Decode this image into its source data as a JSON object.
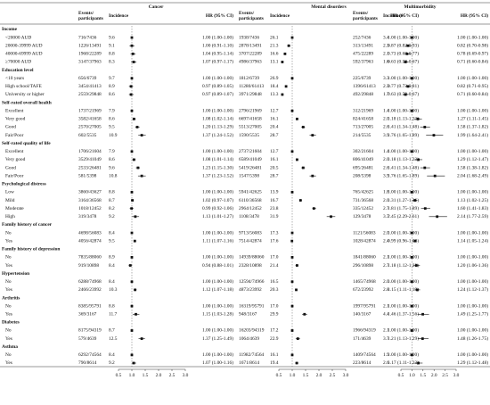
{
  "chart_data": {
    "type": "forest",
    "xlim": [
      0.5,
      3.0
    ],
    "xticks": [
      {
        "value": 0.5,
        "label": "0.5"
      },
      {
        "value": 1,
        "label": "1.0"
      },
      {
        "value": 1.5,
        "label": "1.5"
      },
      {
        "value": 2,
        "label": "2.0"
      },
      {
        "value": 2.5,
        "label": "2.5"
      },
      {
        "value": 3,
        "label": "3.0"
      }
    ],
    "reference": 1,
    "columns": [
      "Events/",
      "participants",
      "Incidence",
      "HR (95% CI)"
    ],
    "groups": [
      {
        "label": "Income",
        "items": [
          "<20000 AUD",
          "20000-39999 AUD",
          "40000-69999 AUD",
          "≥70000 AUD"
        ]
      },
      {
        "label": "Education level",
        "items": [
          "<10 years",
          "High school/TAFE",
          "University or higher"
        ]
      },
      {
        "label": "Self-rated overall health",
        "items": [
          "Excellent",
          "Very good",
          "Good",
          "Fair/Poor"
        ]
      },
      {
        "label": "Self-rated quality of life",
        "items": [
          "Excellent",
          "Very good",
          "Good",
          "Fair/Poor"
        ]
      },
      {
        "label": "Psychological distress",
        "items": [
          "Low",
          "Mild",
          "Moderate",
          "High"
        ]
      },
      {
        "label": "Family history of cancer",
        "items": [
          "No",
          "Yes"
        ]
      },
      {
        "label": "Family history of depression",
        "items": [
          "No",
          "Yes"
        ]
      },
      {
        "label": "Hypertension",
        "items": [
          "No",
          "Yes"
        ]
      },
      {
        "label": "Arthritis",
        "items": [
          "No",
          "Yes"
        ]
      },
      {
        "label": "Diabetes",
        "items": [
          "No",
          "Yes"
        ]
      },
      {
        "label": "Asthma",
        "items": [
          "No",
          "Yes"
        ]
      }
    ],
    "panels": [
      {
        "title": "Cancer",
        "events": [
          "716/7436",
          "1226/13491",
          "1968/22289",
          "3147/37963",
          "656/6739",
          "3454/41413",
          "2559/29848",
          "1737/21969",
          "3582/41658",
          "2570/27005",
          "602/5535",
          "1706/21604",
          "3529/41049",
          "2533/26481",
          "581/5398",
          "3860/43627",
          "3164/36568",
          "1018/12452",
          "319/3478",
          "4698/56083",
          "4056/42874",
          "7835/88060",
          "919/10898",
          "6288/74968",
          "2466/23992",
          "8385/95791",
          "369/3167",
          "8175/94319",
          "579/4639",
          "6292/74564",
          "790/8614"
        ],
        "incidence": [
          "9.6",
          "9.1",
          "8.8",
          "8.3",
          "9.7",
          "8.9",
          "8.6",
          "7.9",
          "8.6",
          "9.5",
          "10.9",
          "7.9",
          "8.6",
          "9.6",
          "10.8",
          "8.8",
          "8.7",
          "8.2",
          "9.2",
          "8.4",
          "9.5",
          "8.9",
          "8.4",
          "8.4",
          "10.3",
          "8.8",
          "11.7",
          "8.7",
          "12.5",
          "8.4",
          "9.2"
        ],
        "values": [
          1,
          1,
          1.04,
          1.07,
          1,
          0.97,
          0.97,
          1,
          1.08,
          1.2,
          1.37,
          1,
          1.08,
          1.23,
          1.37,
          1,
          1.02,
          0.99,
          1.13,
          1,
          1.11,
          1,
          0.94,
          1,
          1.12,
          1,
          1.15,
          1,
          1.37,
          1,
          1.07
        ],
        "lower": [
          1,
          0.91,
          0.95,
          0.97,
          1,
          0.89,
          0.89,
          1,
          1.02,
          1.13,
          1.24,
          1,
          1.01,
          1.15,
          1.23,
          1,
          0.97,
          0.92,
          1.01,
          1,
          1.07,
          1,
          0.88,
          1,
          1.07,
          1,
          1.03,
          1,
          1.25,
          1,
          1
        ],
        "upper": [
          1,
          1.1,
          1.14,
          1.17,
          1,
          1.05,
          1.07,
          1,
          1.14,
          1.29,
          1.52,
          1,
          1.14,
          1.3,
          1.52,
          1,
          1.07,
          1.06,
          1.27,
          1,
          1.16,
          1,
          1.01,
          1,
          1.18,
          1,
          1.28,
          1,
          1.49,
          1,
          1.16
        ],
        "value_labels": [
          "1.00 (1.00-1.00)",
          "1.00 (0.91-1.10)",
          "1.04 (0.95-1.14)",
          "1.07 (0.97-1.17)",
          "1.00 (1.00-1.00)",
          "0.97 (0.89-1.05)",
          "0.97 (0.89-1.07)",
          "1.00 (1.00-1.00)",
          "1.08 (1.02-1.14)",
          "1.20 (1.13-1.29)",
          "1.37 (1.24-1.52)",
          "1.00 (1.00-1.00)",
          "1.08 (1.01-1.14)",
          "1.23 (1.15-1.30)",
          "1.37 (1.23-1.52)",
          "1.00 (1.00-1.00)",
          "1.02 (0.97-1.07)",
          "0.99 (0.92-1.06)",
          "1.13 (1.01-1.27)",
          "1.00 (1.00-1.00)",
          "1.11 (1.07-1.16)",
          "1.00 (1.00-1.00)",
          "0.94 (0.88-1.01)",
          "1.00 (1.00-1.00)",
          "1.12 (1.07-1.18)",
          "1.00 (1.00-1.00)",
          "1.15 (1.03-1.28)",
          "1.00 (1.00-1.00)",
          "1.37 (1.25-1.49)",
          "1.00 (1.00-1.00)",
          "1.07 (1.00-1.16)"
        ]
      },
      {
        "title": "Mental disorders",
        "events": [
          "1938/7436",
          "2878/13491",
          "3707/22289",
          "4986/37963",
          "1812/6739",
          "11280/61413",
          "3971/29848",
          "2796/21969",
          "6697/41658",
          "5513/27005",
          "1590/5535",
          "2737/21604",
          "6589/41049",
          "5419/26481",
          "1547/5398",
          "5941/42625",
          "6110/36568",
          "2964/12452",
          "1108/3478",
          "9713/56083",
          "7514/42874",
          "14939/88060",
          "2328/10898",
          "12594/74966",
          "4873/23992",
          "16319/95791",
          "948/3167",
          "16203/94319",
          "1064/4639",
          "11982/74564",
          "1671/8614"
        ],
        "incidence": [
          "26.1",
          "21.3",
          "16.6",
          "13.1",
          "26.9",
          "18.4",
          "13.3",
          "12.7",
          "16.1",
          "20.4",
          "28.7",
          "12.7",
          "16.1",
          "20.5",
          "28.7",
          "13.9",
          "16.7",
          "23.8",
          "31.9",
          "17.3",
          "17.6",
          "17.0",
          "21.4",
          "16.5",
          "20.3",
          "17.0",
          "29.9",
          "17.2",
          "22.9",
          "16.1",
          "19.4"
        ],
        "values": [
          1,
          0.87,
          0.73,
          0.63,
          1,
          0.77,
          0.63,
          1,
          1.18,
          1.41,
          1.76,
          1,
          1.18,
          1.41,
          1.76,
          1,
          1.31,
          1.81,
          2.45,
          1,
          0.99,
          1,
          1.18,
          1,
          1.15,
          1,
          1.46,
          1,
          1.21,
          1,
          1.17
        ],
        "lower": [
          1,
          0.82,
          0.68,
          0.59,
          1,
          0.73,
          0.59,
          1,
          1.13,
          1.34,
          1.65,
          1,
          1.13,
          1.34,
          1.65,
          1,
          1.27,
          1.75,
          2.29,
          1,
          0.96,
          1,
          1.12,
          1,
          1.11,
          1,
          1.37,
          1,
          1.13,
          1,
          1.11
        ],
        "upper": [
          1,
          0.93,
          0.77,
          0.67,
          1,
          0.81,
          0.67,
          1,
          1.23,
          1.48,
          1.89,
          1,
          1.23,
          1.48,
          1.89,
          1,
          1.36,
          1.89,
          2.61,
          1,
          1.02,
          1,
          1.23,
          1,
          1.19,
          1,
          1.56,
          1,
          1.29,
          1,
          1.23
        ],
        "value_labels": [
          "1.00 (1.00-1.00)",
          "0.87 (0.82-0.93)",
          "0.73 (0.68-0.77)",
          "0.63 (0.59-0.67)",
          "1.00 (1.00-1.00)",
          "0.77 (0.73-0.81)",
          "0.63 (0.59-0.67)",
          "1.00 (1.00-1.00)",
          "1.18 (1.13-1.23)",
          "1.41 (1.34-1.48)",
          "1.76 (1.65-1.89)",
          "1.00 (1.00-1.00)",
          "1.18 (1.13-1.23)",
          "1.41 (1.34-1.48)",
          "1.76 (1.65-1.89)",
          "1.00 (1.00-1.00)",
          "1.31 (1.27-1.36)",
          "1.81 (1.75-1.89)",
          "2.45 (2.29-2.61)",
          "1.00 (1.00-1.00)",
          "0.99 (0.96-1.02)",
          "1.00 (1.00-1.00)",
          "1.18 (1.12-1.23)",
          "1.00 (1.00-1.00)",
          "1.15 (1.11-1.19)",
          "1.00 (1.00-1.00)",
          "1.46 (1.37-1.56)",
          "1.00 (1.00-1.00)",
          "1.21 (1.13-1.29)",
          "1.00 (1.00-1.00)",
          "1.17 (1.11-1.23)"
        ]
      },
      {
        "title": "Multimorbidity",
        "events": [
          "252/7436",
          "313/13491",
          "475/22289",
          "592/37963",
          "225/6739",
          "1396/61413",
          "492/29848",
          "312/21969",
          "824/41658",
          "713/27005",
          "214/5535",
          "302/21604",
          "806/41049",
          "695/26481",
          "208/5398",
          "765/42625",
          "731/36568",
          "335/12452",
          "129/3478",
          "1121/56083",
          "1028/42874",
          "1841/88060",
          "296/10898",
          "1465/74968",
          "672/23992",
          "1997/95791",
          "140/3167",
          "1966/94319",
          "171/4639",
          "1409/74564",
          "223/8614"
        ],
        "incidence": [
          "3.4",
          "2.3",
          "2.1",
          "1.6",
          "3.3",
          "2.3",
          "1.7",
          "1.4",
          "2.0",
          "2.6",
          "3.9",
          "1.4",
          "2.0",
          "2.6",
          "3.9",
          "1.8",
          "2.0",
          "2.7",
          "3.7",
          "2.0",
          "2.4",
          "2.1",
          "2.7",
          "2.0",
          "2.8",
          "2.1",
          "4.4",
          "2.1",
          "3.7",
          "1.9",
          "2.6"
        ],
        "values": [
          1,
          0.82,
          0.78,
          0.71,
          1,
          0.82,
          0.71,
          1,
          1.27,
          1.58,
          1.99,
          1,
          1.29,
          1.58,
          2.04,
          1,
          1.13,
          1.6,
          2.14,
          1,
          1.14,
          1,
          1.2,
          1,
          1.24,
          1,
          1.49,
          1,
          1.48,
          1,
          1.29
        ],
        "lower": [
          1,
          0.7,
          0.69,
          0.6,
          1,
          0.71,
          0.6,
          1,
          1.11,
          1.37,
          1.64,
          1,
          1.12,
          1.38,
          1.68,
          1,
          1.02,
          1.41,
          1.77,
          1,
          1.05,
          1,
          1.06,
          1,
          1.12,
          1,
          1.25,
          1,
          1.26,
          1,
          1.12
        ],
        "upper": [
          1,
          0.98,
          0.97,
          0.84,
          1,
          0.95,
          0.84,
          1,
          1.45,
          1.82,
          2.41,
          1,
          1.47,
          1.82,
          2.49,
          1,
          1.25,
          1.83,
          2.59,
          1,
          1.24,
          1,
          1.36,
          1,
          1.37,
          1,
          1.77,
          1,
          1.75,
          1,
          1.48
        ],
        "value_labels": [
          "1.00 (1.00-1.00)",
          "0.82 (0.70-0.98)",
          "0.78 (0.69-0.97)",
          "0.71 (0.60-0.84)",
          "1.00 (1.00-1.00)",
          "0.82 (0.71-0.95)",
          "0.71 (0.60-0.84)",
          "1.00 (1.00-1.00)",
          "1.27 (1.11-1.45)",
          "1.58 (1.37-1.82)",
          "1.99 (1.64-2.41)",
          "1.00 (1.00-1.00)",
          "1.29 (1.12-1.47)",
          "1.58 (1.38-1.82)",
          "2.04 (1.68-2.49)",
          "1.00 (1.00-1.00)",
          "1.13 (1.02-1.25)",
          "1.60 (1.41-1.83)",
          "2.14 (1.77-2.59)",
          "1.00 (1.00-1.00)",
          "1.14 (1.05-1.24)",
          "1.00 (1.00-1.00)",
          "1.20 (1.06-1.36)",
          "1.00 (1.00-1.00)",
          "1.24 (1.12-1.37)",
          "1.00 (1.00-1.00)",
          "1.49 (1.25-1.77)",
          "1.00 (1.00-1.00)",
          "1.48 (1.26-1.75)",
          "1.00 (1.00-1.00)",
          "1.29 (1.12-1.48)"
        ]
      }
    ]
  }
}
